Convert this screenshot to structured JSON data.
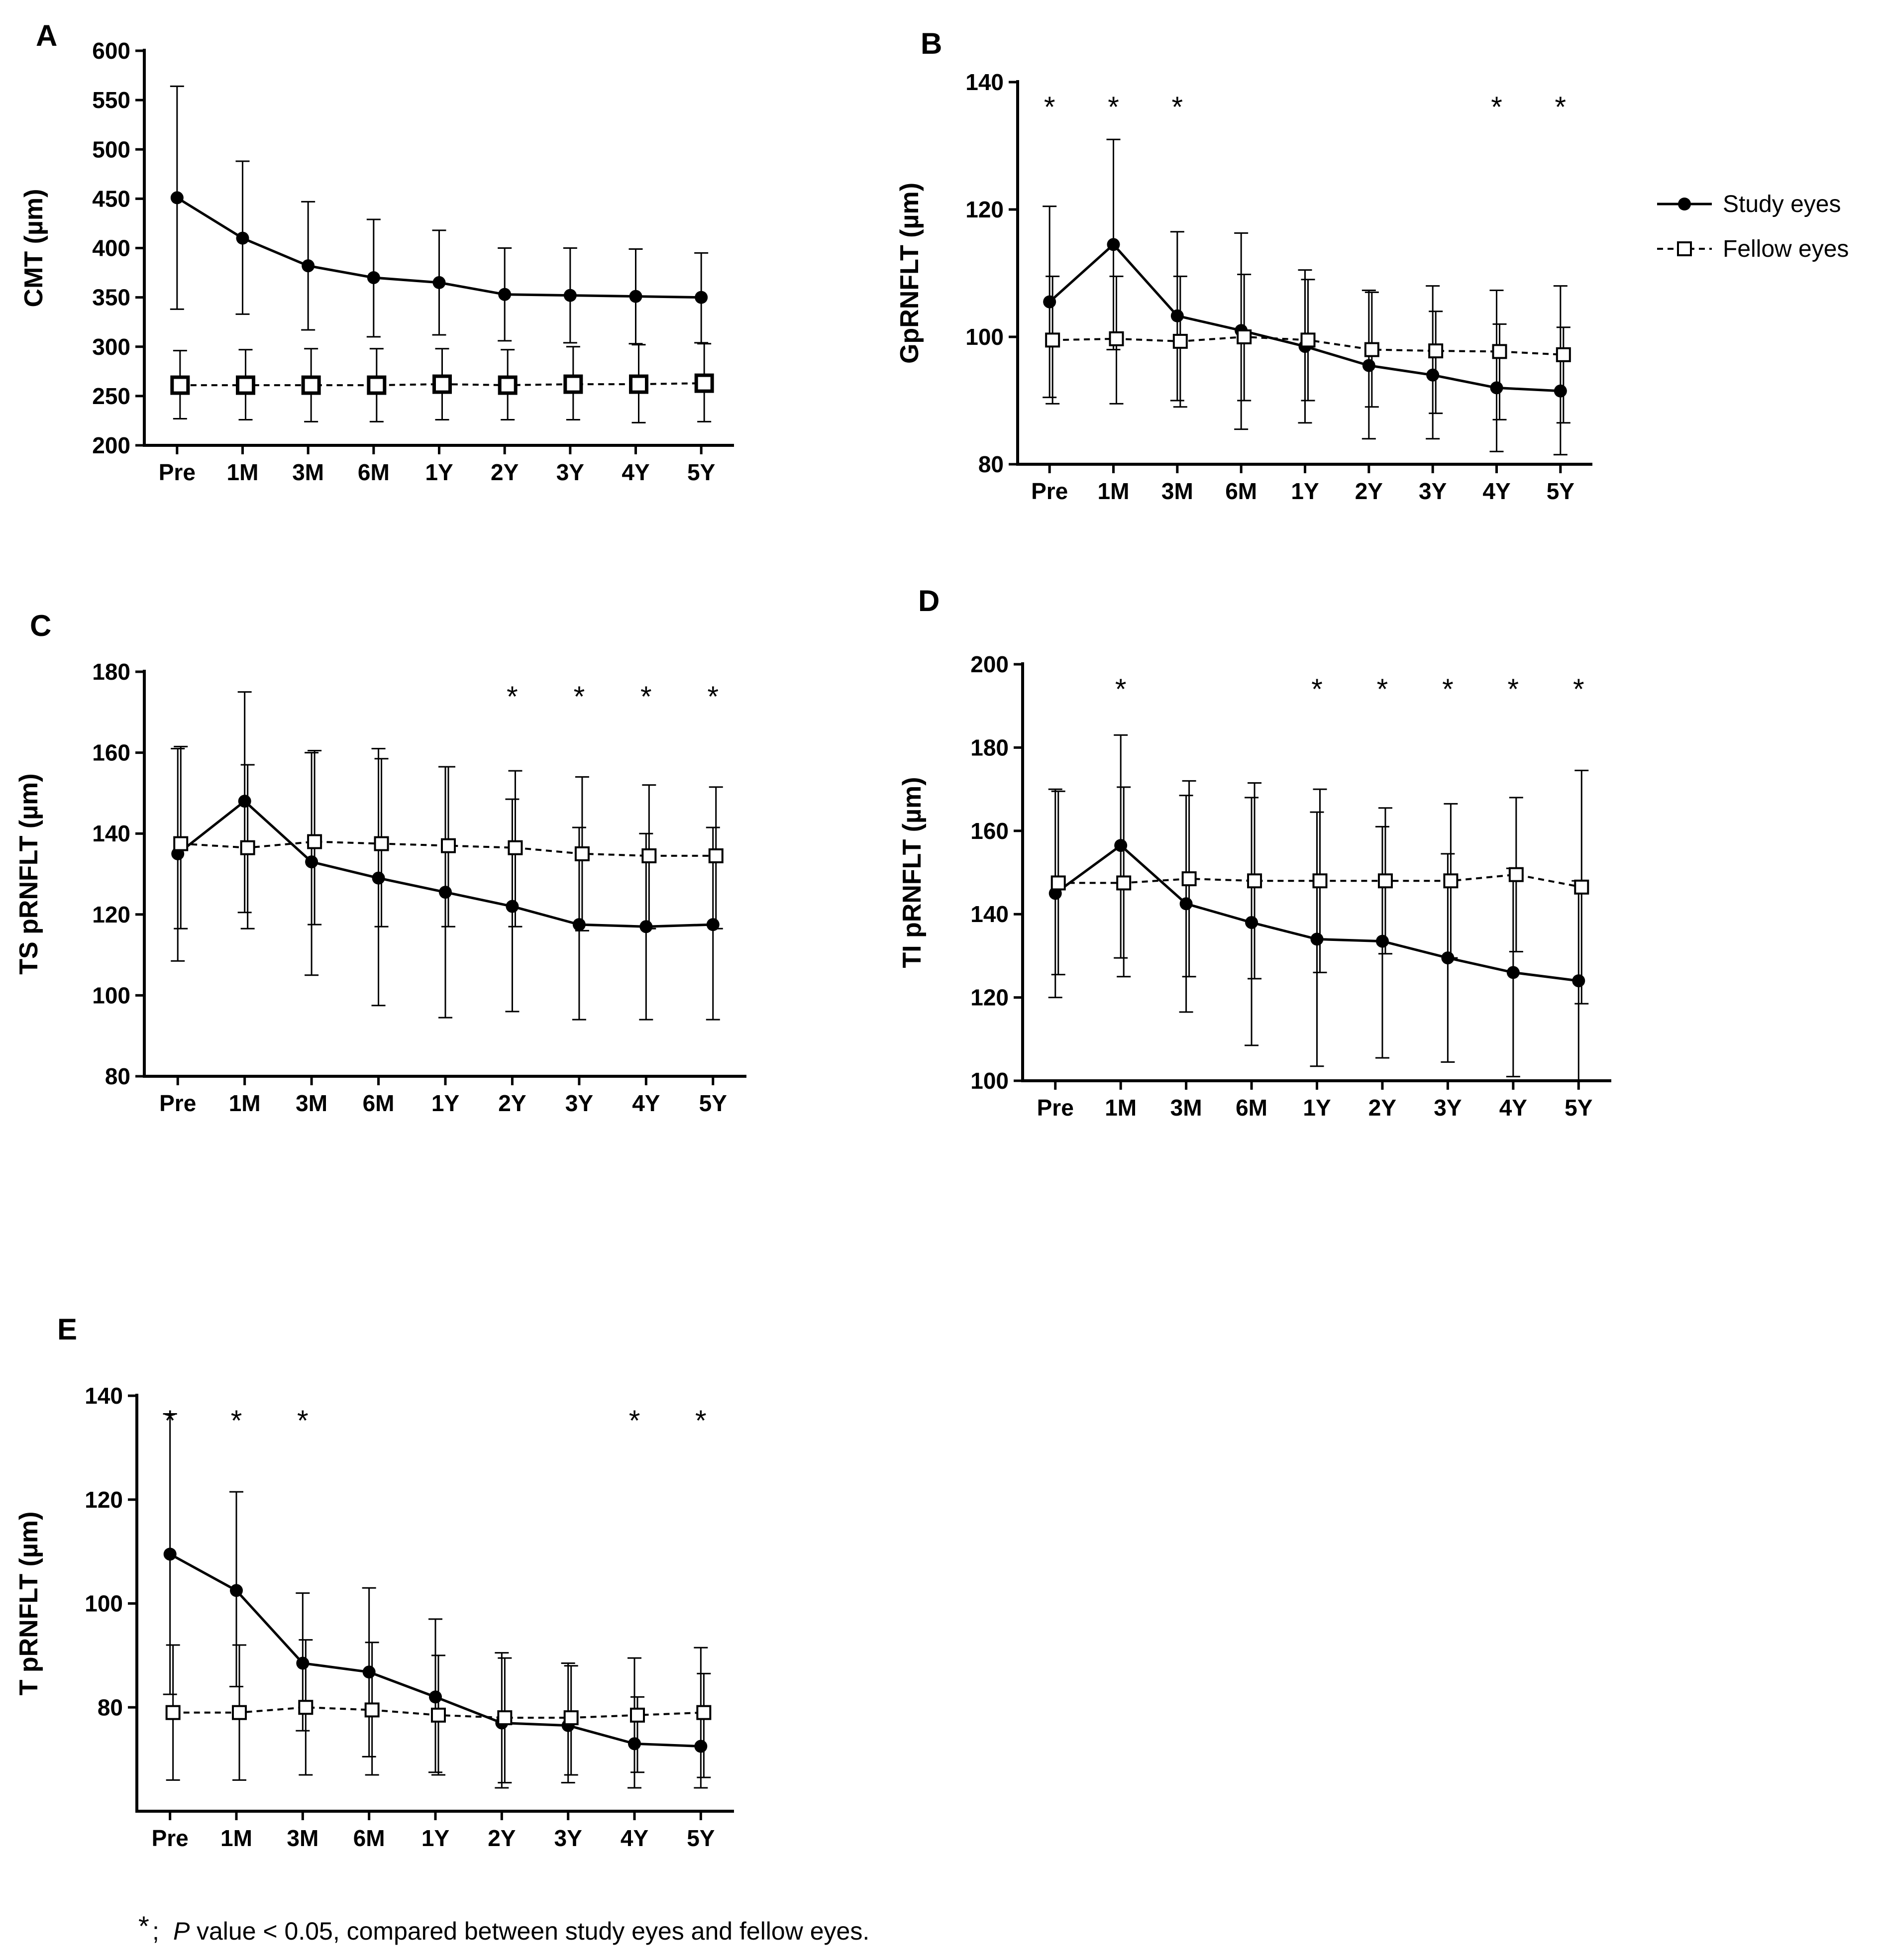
{
  "figure": {
    "x_categories": [
      "Pre",
      "1M",
      "3M",
      "6M",
      "1Y",
      "2Y",
      "3Y",
      "4Y",
      "5Y"
    ],
    "legend": {
      "study_label": "Study eyes",
      "fellow_label": "Fellow eyes"
    },
    "footnote": {
      "star": "*",
      "sep": ";",
      "p": "P",
      "rest": "value < 0.05, compared between study eyes and fellow eyes."
    },
    "colors": {
      "ink": "#000000",
      "background": "#ffffff"
    }
  },
  "chart_data": [
    {
      "id": "A",
      "panel_label": "A",
      "type": "line",
      "ylabel": "CMT (µm)",
      "ylim": [
        200,
        600
      ],
      "yticks": [
        200,
        250,
        300,
        350,
        400,
        450,
        500,
        550,
        600
      ],
      "series": [
        {
          "name": "Study eyes",
          "values": [
            451,
            410,
            382,
            370,
            365,
            353,
            352,
            351,
            350
          ],
          "err_hi": [
            564,
            488,
            447,
            429,
            418,
            400,
            400,
            399,
            395
          ],
          "err_lo": [
            338,
            333,
            317,
            310,
            312,
            306,
            304,
            303,
            304
          ]
        },
        {
          "name": "Fellow eyes",
          "values": [
            261,
            261,
            261,
            261,
            262,
            261,
            262,
            262,
            263
          ],
          "err_hi": [
            296,
            297,
            298,
            298,
            298,
            297,
            300,
            302,
            303
          ],
          "err_lo": [
            227,
            226,
            224,
            224,
            226,
            226,
            226,
            223,
            224
          ]
        }
      ],
      "significant": []
    },
    {
      "id": "B",
      "panel_label": "B",
      "type": "line",
      "ylabel": "GpRNFLT (µm)",
      "ylim": [
        80,
        140
      ],
      "yticks": [
        80,
        100,
        120,
        140
      ],
      "series": [
        {
          "name": "Study eyes",
          "values": [
            105.5,
            114.5,
            103.3,
            101.0,
            98.5,
            95.5,
            94.0,
            92.0,
            91.5
          ],
          "err_hi": [
            120.5,
            131.0,
            116.5,
            116.3,
            110.5,
            107.3,
            108.0,
            107.3,
            108.0
          ],
          "err_lo": [
            90.5,
            98.0,
            90.0,
            85.5,
            86.5,
            84.0,
            84.0,
            82.0,
            81.5
          ]
        },
        {
          "name": "Fellow eyes",
          "values": [
            99.5,
            99.7,
            99.3,
            100.0,
            99.5,
            98.0,
            97.8,
            97.7,
            97.2
          ],
          "err_hi": [
            109.5,
            109.5,
            109.5,
            109.8,
            109.0,
            107.0,
            104.0,
            102.0,
            101.5
          ],
          "err_lo": [
            89.5,
            89.5,
            89.0,
            90.0,
            90.0,
            89.0,
            88.0,
            87.0,
            86.5
          ]
        }
      ],
      "significant": [
        "Pre",
        "1M",
        "3M",
        "4Y",
        "5Y"
      ]
    },
    {
      "id": "C",
      "panel_label": "C",
      "type": "line",
      "ylabel": "TS pRNFLT (µm)",
      "ylim": [
        80,
        180
      ],
      "yticks": [
        80,
        100,
        120,
        140,
        160,
        180
      ],
      "series": [
        {
          "name": "Study eyes",
          "values": [
            135,
            148,
            133,
            129,
            125.5,
            122,
            117.5,
            117,
            117.5
          ],
          "err_hi": [
            161,
            175,
            160,
            161,
            156.5,
            148.5,
            141.5,
            140,
            141.5
          ],
          "err_lo": [
            108.5,
            120.5,
            105,
            97.5,
            94.5,
            96,
            94,
            94,
            94
          ]
        },
        {
          "name": "Fellow eyes",
          "values": [
            137.5,
            136.5,
            138,
            137.5,
            137,
            136.5,
            135,
            134.5,
            134.5
          ],
          "err_hi": [
            161.5,
            157,
            160.5,
            158.5,
            156.5,
            155.5,
            154,
            152,
            151.5
          ],
          "err_lo": [
            116.5,
            116.5,
            117.5,
            117,
            117,
            117,
            116,
            116.5,
            116.5
          ]
        }
      ],
      "significant": [
        "2Y",
        "3Y",
        "4Y",
        "5Y"
      ]
    },
    {
      "id": "D",
      "panel_label": "D",
      "type": "line",
      "ylabel": "TI pRNFLT (µm)",
      "ylim": [
        100,
        200
      ],
      "yticks": [
        100,
        120,
        140,
        160,
        180,
        200
      ],
      "series": [
        {
          "name": "Study eyes",
          "values": [
            145,
            156.5,
            142.5,
            138,
            134,
            133.5,
            129.5,
            126,
            124
          ],
          "err_hi": [
            170,
            183,
            168.5,
            168,
            164.5,
            161,
            154.5,
            151,
            148
          ],
          "err_lo": [
            120,
            129.5,
            116.5,
            108.5,
            103.5,
            105.5,
            104.5,
            101,
            100
          ]
        },
        {
          "name": "Fellow eyes",
          "values": [
            147.5,
            147.5,
            148.5,
            148,
            148,
            148,
            148,
            149.5,
            146.5
          ],
          "err_hi": [
            169.5,
            170.5,
            172,
            171.5,
            170,
            165.5,
            166.5,
            168,
            174.5
          ],
          "err_lo": [
            125.5,
            125,
            125,
            124.5,
            126,
            130.5,
            129.5,
            131,
            118.5
          ]
        }
      ],
      "significant": [
        "1M",
        "1Y",
        "2Y",
        "3Y",
        "4Y",
        "5Y"
      ]
    },
    {
      "id": "E",
      "panel_label": "E",
      "type": "line",
      "ylabel": "T pRNFLT (µm)",
      "ylim": [
        60,
        140
      ],
      "yticks": [
        80,
        100,
        120,
        140
      ],
      "series": [
        {
          "name": "Study eyes",
          "values": [
            109.5,
            102.5,
            88.5,
            86.8,
            82,
            77,
            76.5,
            73,
            72.5
          ],
          "err_hi": [
            136.5,
            121.5,
            102,
            103,
            97,
            90.5,
            88.5,
            89.5,
            91.5
          ],
          "err_lo": [
            82.5,
            84,
            75.5,
            70.5,
            67.5,
            64.5,
            65.5,
            64.5,
            64.5
          ]
        },
        {
          "name": "Fellow eyes",
          "values": [
            79,
            79,
            80,
            79.5,
            78.5,
            78,
            78,
            78.5,
            79
          ],
          "err_hi": [
            92,
            92,
            93,
            92.5,
            90,
            89.5,
            88,
            82,
            86.5
          ],
          "err_lo": [
            66,
            66,
            67,
            67,
            67,
            65.5,
            67,
            67.5,
            66.5
          ]
        }
      ],
      "significant": [
        "Pre",
        "1M",
        "3M",
        "4Y",
        "5Y"
      ]
    }
  ]
}
